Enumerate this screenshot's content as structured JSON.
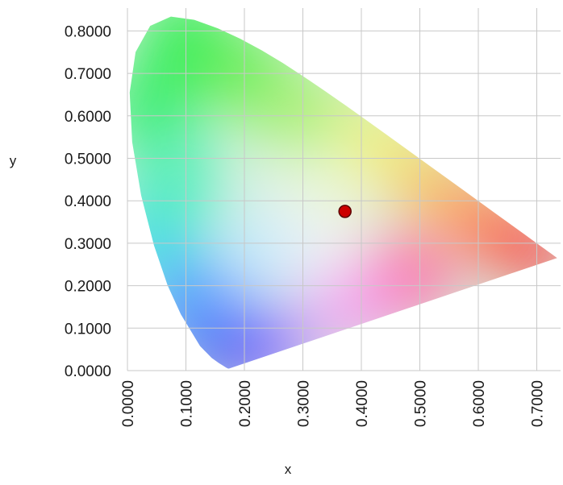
{
  "chart_data": {
    "type": "scatter",
    "title": "",
    "xlabel": "x",
    "ylabel": "y",
    "xlim": [
      0,
      0.74
    ],
    "ylim": [
      0,
      0.84
    ],
    "grid": true,
    "x_ticks": [
      0.0,
      0.1,
      0.2,
      0.3,
      0.4,
      0.5,
      0.6,
      0.7
    ],
    "x_tick_labels": [
      "0.0000",
      "0.1000",
      "0.2000",
      "0.3000",
      "0.4000",
      "0.5000",
      "0.6000",
      "0.7000"
    ],
    "y_ticks": [
      0.0,
      0.1,
      0.2,
      0.3,
      0.4,
      0.5,
      0.6,
      0.7,
      0.8
    ],
    "y_tick_labels": [
      "0.0000",
      "0.1000",
      "0.2000",
      "0.3000",
      "0.4000",
      "0.5000",
      "0.6000",
      "0.7000",
      "0.8000"
    ],
    "background": "CIE 1931 chromaticity diagram (spectral locus gamut)",
    "points": [
      {
        "x": 0.372,
        "y": 0.375,
        "color": "#cc0000"
      }
    ],
    "colors": {
      "grid": "#c8c8c8",
      "point_fill": "#cc0000",
      "point_stroke": "#5a0000"
    }
  }
}
